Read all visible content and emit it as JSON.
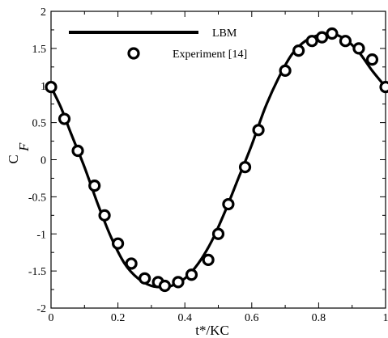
{
  "chart_data": {
    "type": "line",
    "title": "",
    "xlabel": "t*/KC",
    "ylabel_main": "C",
    "ylabel_sub": "F",
    "xlim": [
      0,
      1
    ],
    "ylim": [
      -2,
      2
    ],
    "x_ticks": [
      0,
      0.2,
      0.4,
      0.6,
      0.8,
      1
    ],
    "x_tick_labels": [
      "0",
      "0.2",
      "0.4",
      "0.6",
      "0.8",
      "1"
    ],
    "y_ticks": [
      -2,
      -1.5,
      -1,
      -0.5,
      0,
      0.5,
      1,
      1.5,
      2
    ],
    "y_tick_labels": [
      "-2",
      "-1.5",
      "-1",
      "-0.5",
      "0",
      "0.5",
      "1",
      "1.5",
      "2"
    ],
    "grid": false,
    "legend_position": "top-left",
    "series": [
      {
        "name": "LBM",
        "style": "line",
        "color": "#000000",
        "x": [
          0,
          0.03,
          0.06,
          0.1,
          0.14,
          0.18,
          0.22,
          0.26,
          0.3,
          0.34,
          0.36,
          0.4,
          0.44,
          0.48,
          0.52,
          0.56,
          0.6,
          0.64,
          0.68,
          0.72,
          0.76,
          0.8,
          0.84,
          0.88,
          0.92,
          0.96,
          1.0
        ],
        "y": [
          0.98,
          0.7,
          0.35,
          -0.1,
          -0.6,
          -1.05,
          -1.4,
          -1.6,
          -1.7,
          -1.72,
          -1.7,
          -1.6,
          -1.4,
          -1.1,
          -0.7,
          -0.25,
          0.2,
          0.7,
          1.1,
          1.42,
          1.6,
          1.68,
          1.7,
          1.62,
          1.45,
          1.2,
          0.98
        ]
      },
      {
        "name": "Experiment  [14]",
        "style": "marker",
        "marker": "circle-open",
        "color": "#000000",
        "x": [
          0.0,
          0.04,
          0.08,
          0.13,
          0.16,
          0.2,
          0.24,
          0.28,
          0.32,
          0.34,
          0.38,
          0.42,
          0.47,
          0.5,
          0.53,
          0.58,
          0.62,
          0.7,
          0.74,
          0.78,
          0.81,
          0.84,
          0.88,
          0.92,
          0.96,
          1.0
        ],
        "y": [
          0.98,
          0.55,
          0.12,
          -0.35,
          -0.75,
          -1.13,
          -1.4,
          -1.6,
          -1.65,
          -1.7,
          -1.65,
          -1.55,
          -1.35,
          -1.0,
          -0.6,
          -0.1,
          0.4,
          1.2,
          1.47,
          1.6,
          1.65,
          1.7,
          1.6,
          1.5,
          1.35,
          0.98
        ]
      }
    ]
  }
}
